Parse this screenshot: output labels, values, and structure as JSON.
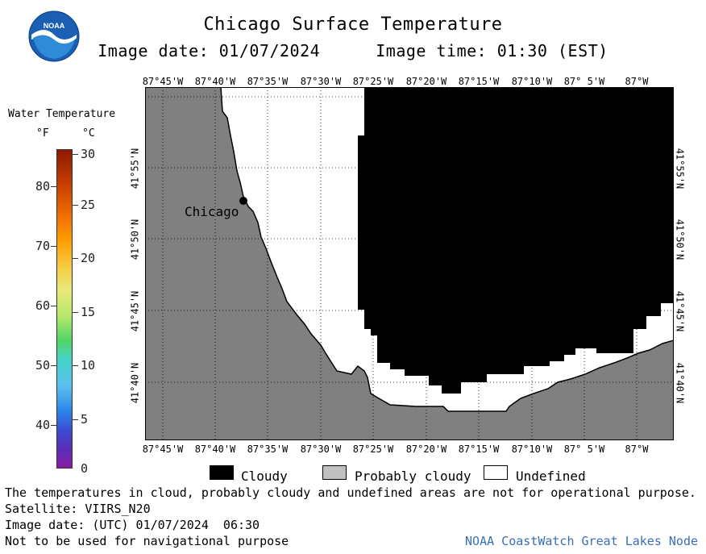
{
  "header": {
    "title": "Chicago Surface Temperature",
    "image_date_label": "Image date: 01/07/2024",
    "image_time_label": "Image time: 01:30 (EST)",
    "logo_icon": "noaa-logo-icon",
    "logo_text": "NOAA"
  },
  "legend": {
    "title": "Water Temperature",
    "unit_f": "°F",
    "unit_c": "°C",
    "fahrenheit_ticks": [
      "80",
      "70",
      "60",
      "50",
      "40"
    ],
    "celsius_ticks": [
      "30",
      "25",
      "20",
      "15",
      "10",
      "5",
      "0"
    ]
  },
  "map": {
    "longitude_labels": [
      "87°45'W",
      "87°40'W",
      "87°35'W",
      "87°30'W",
      "87°25'W",
      "87°20'W",
      "87°15'W",
      "87°10'W",
      "87° 5'W",
      "87°W"
    ],
    "latitude_labels": [
      "41°55'N",
      "41°50'N",
      "41°45'N",
      "41°40'N"
    ],
    "city_label": "Chicago",
    "colors": {
      "land": "#808080",
      "cloudy": "#000000",
      "undefined": "#ffffff",
      "probably_cloudy": "#c0c0c0"
    }
  },
  "map_legend": {
    "cloudy": "Cloudy",
    "probably_cloudy": "Probably cloudy",
    "undefined": "Undefined"
  },
  "footer": {
    "disclaimer": "The temperatures in cloud, probably cloudy and undefined areas are not for operational purpose.",
    "satellite": "Satellite: VIIRS_N20",
    "utc_date": "Image date: (UTC) 01/07/2024  06:30",
    "navigation": "Not to be used for navigational purpose",
    "credit": "NOAA CoastWatch Great Lakes Node"
  }
}
